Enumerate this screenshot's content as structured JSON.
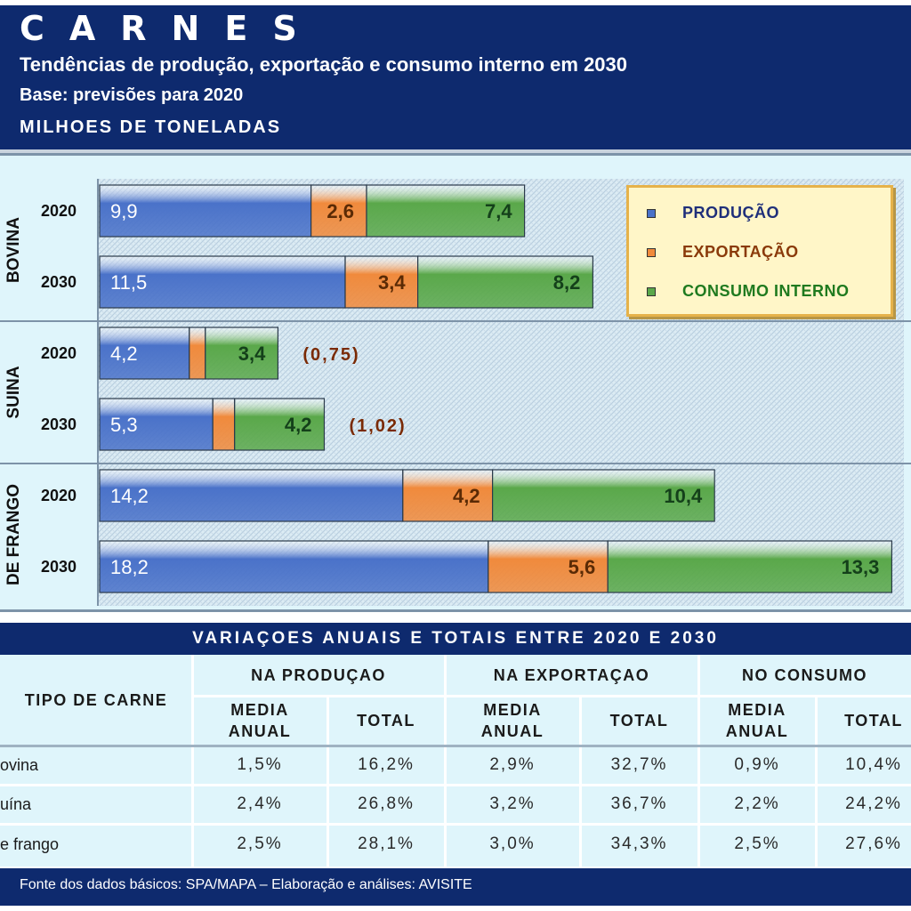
{
  "header": {
    "title": "CARNES",
    "subtitle": "Tendências de produção, exportação e consumo interno em 2030",
    "base": "Base: previsões para 2020",
    "unit": "MILHOES DE TONELADAS"
  },
  "chart_data": {
    "type": "bar",
    "orientation": "horizontal",
    "stacked": true,
    "groups": [
      {
        "label": "BOVINA",
        "rows": [
          {
            "year": "2020",
            "values": [
              9.9,
              2.6,
              7.4
            ],
            "labels": [
              "9,9",
              "2,6",
              "7,4"
            ],
            "note": ""
          },
          {
            "year": "2030",
            "values": [
              11.5,
              3.4,
              8.2
            ],
            "labels": [
              "11,5",
              "3,4",
              "8,2"
            ],
            "note": ""
          }
        ]
      },
      {
        "label": "SUINA",
        "rows": [
          {
            "year": "2020",
            "values": [
              4.2,
              0.75,
              3.4
            ],
            "labels": [
              "4,2",
              "",
              "3,4"
            ],
            "note": "(0,75)"
          },
          {
            "year": "2030",
            "values": [
              5.3,
              1.02,
              4.2
            ],
            "labels": [
              "5,3",
              "",
              "4,2"
            ],
            "note": "(1,02)"
          }
        ]
      },
      {
        "label": "DE FRANGO",
        "rows": [
          {
            "year": "2020",
            "values": [
              14.2,
              4.2,
              10.4
            ],
            "labels": [
              "14,2",
              "4,2",
              "10,4"
            ],
            "note": ""
          },
          {
            "year": "2030",
            "values": [
              18.2,
              5.6,
              13.3
            ],
            "labels": [
              "18,2",
              "5,6",
              "13,3"
            ],
            "note": ""
          }
        ]
      }
    ],
    "series": [
      {
        "name": "PRODUÇÃO",
        "color": "#4a72c9",
        "text_color": "#1f2f7a"
      },
      {
        "name": "EXPORTAÇÃO",
        "color": "#f08a3c",
        "text_color": "#8a3a0a"
      },
      {
        "name": "CONSUMO INTERNO",
        "color": "#5aa84a",
        "text_color": "#1f7a1f"
      }
    ],
    "legend_position": "top-right",
    "grid": true
  },
  "table": {
    "title": "VARIAÇOES ANUAIS E TOTAIS ENTRE 2020 E 2030",
    "col_type": "TIPO DE CARNE",
    "groups": [
      "NA PRODUÇAO",
      "NA EXPORTAÇAO",
      "NO CONSUMO"
    ],
    "sub_media": "MEDIA ANUAL",
    "sub_total": "TOTAL",
    "rows": [
      {
        "label": "ovina",
        "values": [
          "1,5%",
          "16,2%",
          "2,9%",
          "32,7%",
          "0,9%",
          "10,4%"
        ]
      },
      {
        "label": "uína",
        "values": [
          "2,4%",
          "26,8%",
          "3,2%",
          "36,7%",
          "2,2%",
          "24,2%"
        ]
      },
      {
        "label": "e frango",
        "values": [
          "2,5%",
          "28,1%",
          "3,0%",
          "34,3%",
          "2,5%",
          "27,6%"
        ]
      }
    ]
  },
  "footer": {
    "text": "Fonte dos dados básicos: SPA/MAPA – Elaboração e análises: AVISITE"
  }
}
